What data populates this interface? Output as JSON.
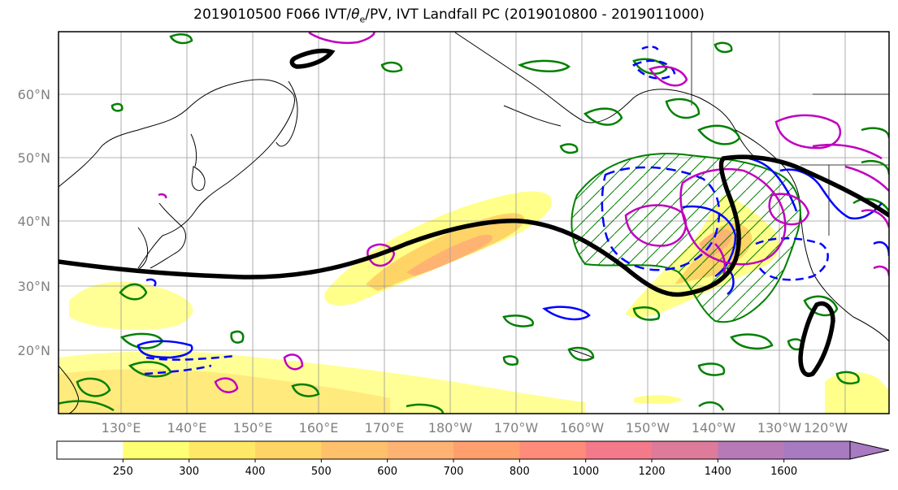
{
  "title": {
    "prefix": "2019010500 F066 IVT/",
    "theta": "θ",
    "sub": "e",
    "suffix": "/PV, IVT Landfall PC (2019010800 - 2019011000)"
  },
  "map": {
    "lat_labels": [
      "60°N",
      "50°N",
      "40°N",
      "30°N",
      "20°N"
    ],
    "lon_labels": [
      "130°E",
      "140°E",
      "150°E",
      "160°E",
      "170°E",
      "180°W",
      "170°W",
      "160°W",
      "150°W",
      "140°W",
      "130°W",
      "120°W"
    ]
  },
  "colorbar": {
    "levels": [
      "250",
      "300",
      "400",
      "500",
      "600",
      "700",
      "800",
      "1000",
      "1200",
      "1400",
      "1600"
    ],
    "colors": [
      "#ffffff",
      "#ffff73",
      "#ffe866",
      "#ffd466",
      "#ffc06b",
      "#ffb373",
      "#ff9f6e",
      "#ff8c7a",
      "#f27a8a",
      "#de7a9a",
      "#b77ab8",
      "#a87ac2"
    ]
  },
  "contour_colors": {
    "theta_e": "#008000",
    "pv_negative": "#0000ff",
    "pv_positive": "#bf00bf",
    "jet": "#000000"
  }
}
